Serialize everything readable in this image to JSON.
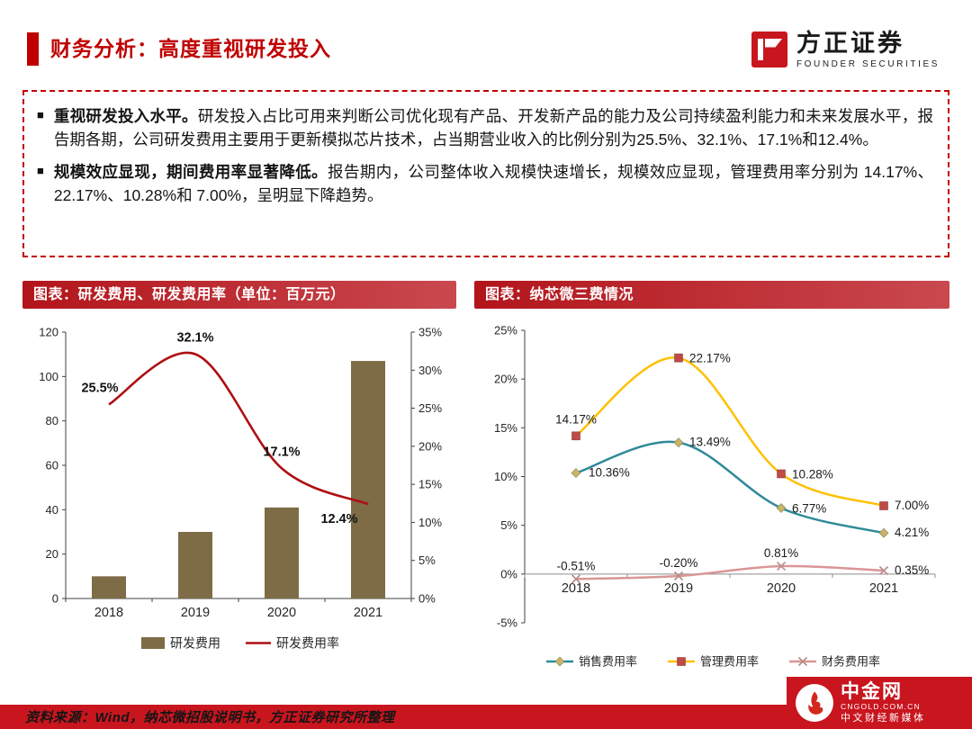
{
  "page": {
    "accent": "#C00000",
    "banner_red": "#B2151B",
    "footer_red": "#C8151E"
  },
  "header": {
    "title": "财务分析：高度重视研发投入",
    "brand": {
      "name": "方正证券",
      "subtitle": "FOUNDER SECURITIES"
    }
  },
  "summary": {
    "marker": "■",
    "bullets": [
      {
        "lead": "重视研发投入水平。",
        "text": "研发投入占比可用来判断公司优化现有产品、开发新产品的能力及公司持续盈利能力和未来发展水平，报告期各期，公司研发费用主要用于更新模拟芯片技术，占当期营业收入的比例分别为25.5%、32.1%、17.1%和12.4%。"
      },
      {
        "lead": "规模效应显现，期间费用率显著降低。",
        "text": "报告期内，公司整体收入规模快速增长，规模效应显现，管理费用率分别为 14.17%、22.17%、10.28%和 7.00%，呈明显下降趋势。"
      }
    ]
  },
  "chart_data": [
    {
      "type": "bar+line",
      "title": "图表：研发费用、研发费用率（单位：百万元）",
      "categories": [
        "2018",
        "2019",
        "2020",
        "2021"
      ],
      "left_axis": {
        "min": 0,
        "max": 120,
        "step": 20
      },
      "right_axis": {
        "min": 0,
        "max": 35,
        "step": 5,
        "suffix": "%"
      },
      "grid": false,
      "legend_position": "bottom",
      "series": [
        {
          "name": "研发费用",
          "type": "bar",
          "axis": "left",
          "color": "#7D6C46",
          "values": [
            10,
            30,
            41,
            107
          ]
        },
        {
          "name": "研发费用率",
          "type": "line",
          "axis": "right",
          "color": "#AE0E13",
          "values": [
            25.5,
            32.1,
            17.1,
            12.4
          ],
          "labels": [
            "25.5%",
            "32.1%",
            "17.1%",
            "12.4%"
          ]
        }
      ]
    },
    {
      "type": "line",
      "title": "图表：纳芯微三费情况",
      "categories": [
        "2018",
        "2019",
        "2020",
        "2021"
      ],
      "y_axis": {
        "min": -5,
        "max": 25,
        "step": 5,
        "suffix": "%"
      },
      "grid": false,
      "legend_position": "bottom",
      "series": [
        {
          "name": "销售费用率",
          "color": "#2F8A99",
          "marker": "diamond",
          "marker_color": "#C7B56A",
          "values": [
            10.36,
            13.49,
            6.77,
            4.21
          ],
          "labels": [
            "10.36%",
            "13.49%",
            "6.77%",
            "4.21%"
          ]
        },
        {
          "name": "管理费用率",
          "color": "#FFC000",
          "marker": "square",
          "marker_color": "#BE4B48",
          "values": [
            14.17,
            22.17,
            10.28,
            7.0
          ],
          "labels": [
            "14.17%",
            "22.17%",
            "10.28%",
            "7.00%"
          ]
        },
        {
          "name": "财务费用率",
          "color": "#D99694",
          "marker": "x",
          "marker_color": "#B98D8B",
          "values": [
            -0.51,
            -0.2,
            0.81,
            0.35
          ],
          "labels": [
            "-0.51%",
            "-0.20%",
            "0.81%",
            "0.35%"
          ]
        }
      ]
    }
  ],
  "footer": {
    "source": "资料来源：Wind，纳芯微招股说明书，方正证券研究所整理",
    "watermark": {
      "name": "中金网",
      "domain": "CNGOLD.COM.CN",
      "tagline": "中文财经新媒体"
    }
  }
}
